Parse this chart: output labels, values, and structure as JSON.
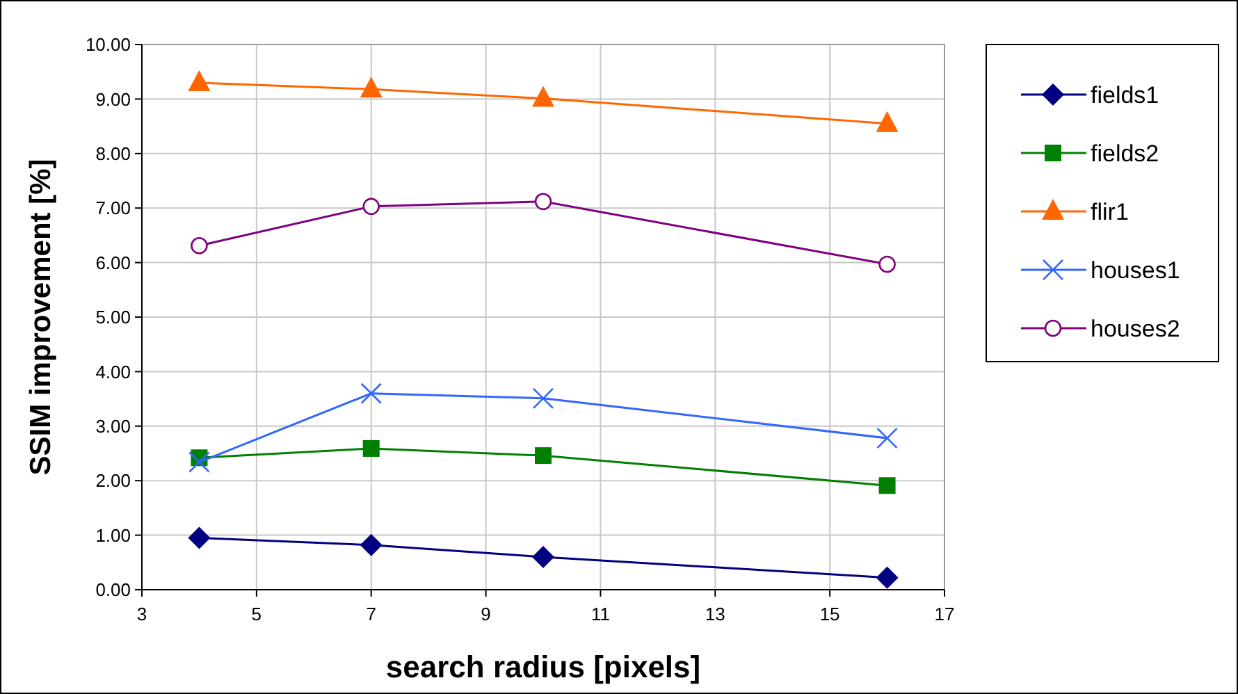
{
  "chart_data": {
    "type": "line",
    "xlabel": "search radius [pixels]",
    "ylabel": "SSIM improvement [%]",
    "x": [
      4,
      7,
      10,
      16
    ],
    "series": [
      {
        "name": "fields1",
        "color": "#000080",
        "marker": "diamond",
        "values": [
          0.95,
          0.82,
          0.6,
          0.22
        ]
      },
      {
        "name": "fields2",
        "color": "#008000",
        "marker": "square",
        "values": [
          2.42,
          2.59,
          2.46,
          1.91
        ]
      },
      {
        "name": "flir1",
        "color": "#ff6600",
        "marker": "triangle",
        "values": [
          9.3,
          9.18,
          9.01,
          8.55
        ]
      },
      {
        "name": "houses1",
        "color": "#3366ff",
        "marker": "cross",
        "values": [
          2.34,
          3.6,
          3.51,
          2.78
        ]
      },
      {
        "name": "houses2",
        "color": "#800080",
        "marker": "circle",
        "values": [
          6.31,
          7.03,
          7.12,
          5.97
        ]
      }
    ],
    "xlim": [
      3,
      17
    ],
    "xticks": [
      3,
      5,
      7,
      9,
      11,
      13,
      15,
      17
    ],
    "ylim": [
      0,
      10
    ],
    "yticks": [
      {
        "value": 0,
        "label": "0.00"
      },
      {
        "value": 1,
        "label": "1.00"
      },
      {
        "value": 2,
        "label": "2.00"
      },
      {
        "value": 3,
        "label": "3.00"
      },
      {
        "value": 4,
        "label": "4.00"
      },
      {
        "value": 5,
        "label": "5.00"
      },
      {
        "value": 6,
        "label": "6.00"
      },
      {
        "value": 7,
        "label": "7.00"
      },
      {
        "value": 8,
        "label": "8.00"
      },
      {
        "value": 9,
        "label": "9.00"
      },
      {
        "value": 10,
        "label": "10.00"
      }
    ],
    "grid": true,
    "legend": "right"
  }
}
